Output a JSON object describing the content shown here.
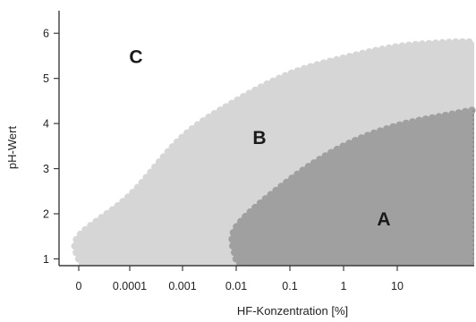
{
  "chart_data": {
    "type": "area",
    "xlabel": "HF-Konzentration [%]",
    "ylabel": "pH-Wert",
    "x_scale": "log",
    "x_ticks": [
      "0",
      "0.0001",
      "0.001",
      "0.01",
      "0.1",
      "1",
      "10"
    ],
    "y_ticks": [
      "1",
      "2",
      "3",
      "4",
      "5",
      "6"
    ],
    "ylim": [
      0.85,
      6.5
    ],
    "grid": false,
    "colors": {
      "region_A": "#a0a0a0",
      "region_B": "#d6d6d6",
      "region_C": "#ffffff",
      "axis": "#3c3c3c"
    },
    "regions": [
      {
        "label": "C",
        "label_pos": {
          "x": "0.0001",
          "y": 5.5
        }
      },
      {
        "label": "B",
        "label_pos": {
          "x": "0.1",
          "y": 3.7
        },
        "boundary": [
          [
            "0",
            1.0
          ],
          [
            "0",
            1.5
          ],
          [
            "0.0001",
            2.4
          ],
          [
            "0.001",
            3.7
          ],
          [
            "0.01",
            4.5
          ],
          [
            "0.1",
            5.1
          ],
          [
            "1",
            5.45
          ],
          [
            "10",
            5.7
          ],
          [
            "100",
            5.8
          ],
          [
            "1000",
            5.8
          ]
        ]
      },
      {
        "label": "A",
        "label_pos": {
          "x": "10",
          "y": 1.9
        },
        "boundary": [
          [
            "0.01",
            1.0
          ],
          [
            "0.01",
            1.7
          ],
          [
            "0.1",
            2.75
          ],
          [
            "1",
            3.5
          ],
          [
            "10",
            3.95
          ],
          [
            "100",
            4.2
          ],
          [
            "1000",
            4.3
          ]
        ]
      }
    ]
  }
}
